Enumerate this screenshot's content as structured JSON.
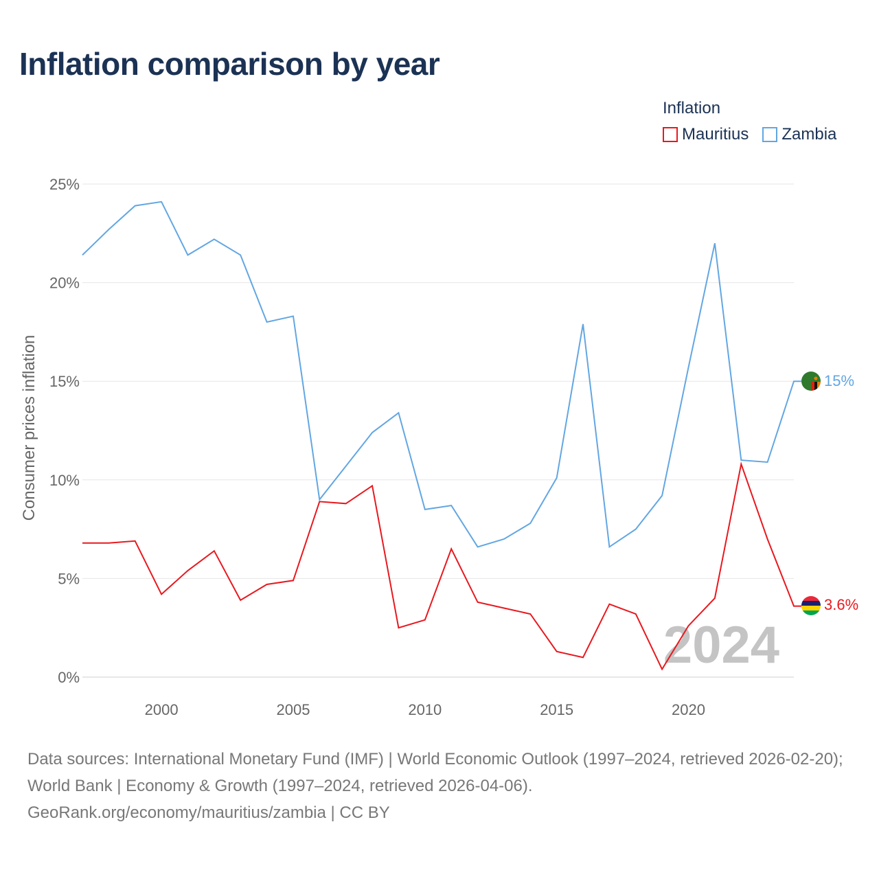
{
  "title": "Inflation comparison by year",
  "legend": {
    "title": "Inflation",
    "items": [
      {
        "label": "Mauritius",
        "color": "#e8181e"
      },
      {
        "label": "Zambia",
        "color": "#62a6e2"
      }
    ]
  },
  "chart_data": {
    "type": "line",
    "title": "Inflation comparison by year",
    "ylabel": "Consumer prices inflation",
    "xlabel": "",
    "xlim": [
      1997,
      2024
    ],
    "ylim": [
      0,
      25
    ],
    "grid": true,
    "x_ticks": [
      2000,
      2005,
      2010,
      2015,
      2020
    ],
    "y_ticks": [
      0,
      5,
      10,
      15,
      20,
      25
    ],
    "y_tick_labels": [
      "0%",
      "5%",
      "10%",
      "15%",
      "20%",
      "25%"
    ],
    "x": [
      1997,
      1998,
      1999,
      2000,
      2001,
      2002,
      2003,
      2004,
      2005,
      2006,
      2007,
      2008,
      2009,
      2010,
      2011,
      2012,
      2013,
      2014,
      2015,
      2016,
      2017,
      2018,
      2019,
      2020,
      2021,
      2022,
      2023,
      2024
    ],
    "series": [
      {
        "name": "Mauritius",
        "color": "#e8181e",
        "values": [
          6.8,
          6.8,
          6.9,
          4.2,
          5.4,
          6.4,
          3.9,
          4.7,
          4.9,
          8.9,
          8.8,
          9.7,
          2.5,
          2.9,
          6.5,
          3.8,
          3.5,
          3.2,
          1.3,
          1.0,
          3.7,
          3.2,
          0.4,
          2.6,
          4.0,
          10.8,
          7.0,
          3.6
        ],
        "end_label": "3.6%"
      },
      {
        "name": "Zambia",
        "color": "#62a6e2",
        "values": [
          21.4,
          22.7,
          23.9,
          24.1,
          21.4,
          22.2,
          21.4,
          18.0,
          18.3,
          9.0,
          10.7,
          12.4,
          13.4,
          8.5,
          8.7,
          6.6,
          7.0,
          7.8,
          10.1,
          17.9,
          6.6,
          7.5,
          9.2,
          15.7,
          22.0,
          11.0,
          10.9,
          15.0
        ],
        "end_label": "15%"
      }
    ],
    "year_watermark": "2024"
  },
  "source": {
    "line1": "Data sources: International Monetary Fund (IMF) | World Economic Outlook (1997–2024, retrieved 2026-02-20); World Bank | Economy & Growth (1997–2024, retrieved 2026-04-06).",
    "line2": "GeoRank.org/economy/mauritius/zambia | CC BY"
  }
}
